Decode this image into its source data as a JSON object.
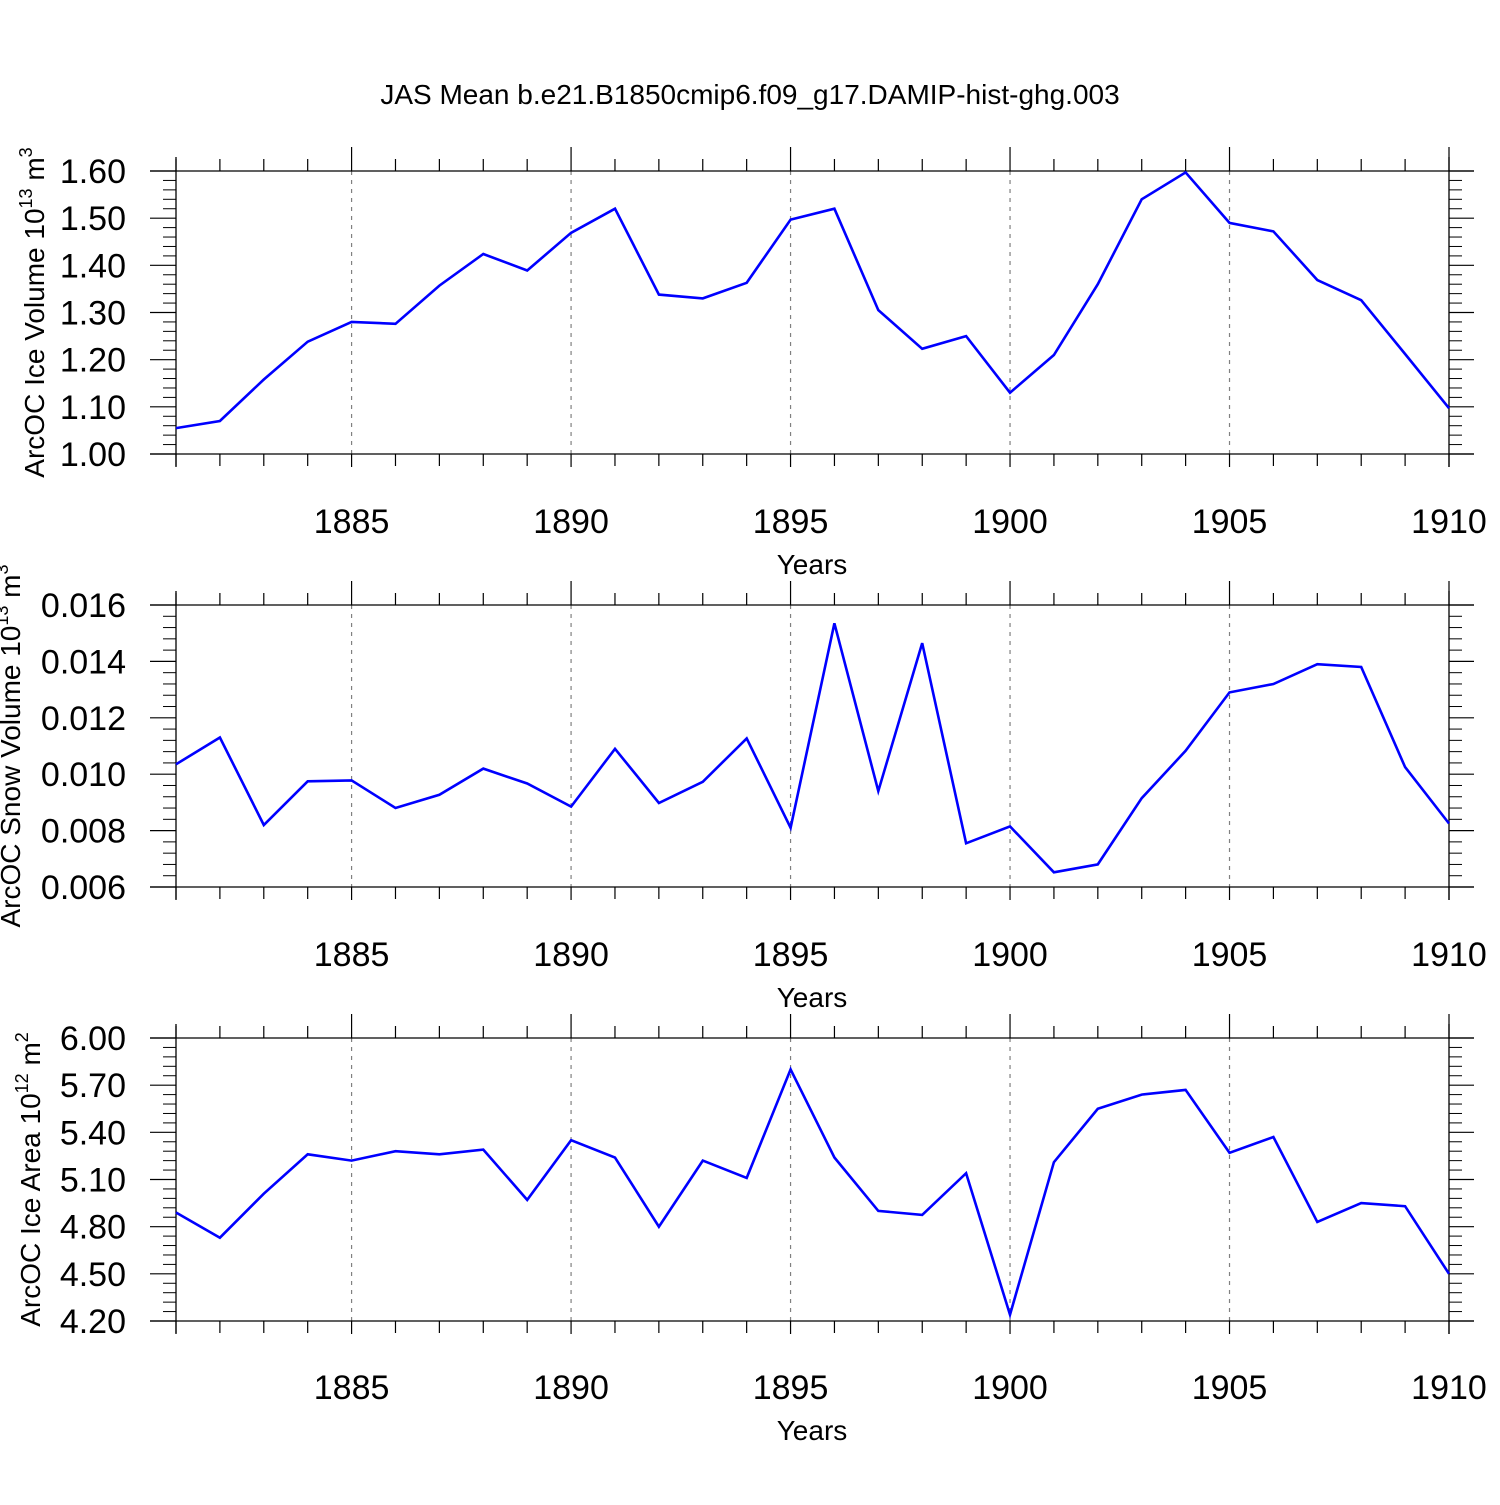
{
  "title": "JAS Mean b.e21.B1850cmip6.f09_g17.DAMIP-hist-ghg.003",
  "colors": {
    "line": "#0000ff",
    "axis": "#000000",
    "grid": "#808080"
  },
  "chart_data": [
    {
      "type": "line",
      "name": "ice-volume",
      "ylabel": {
        "text": "ArcOC Ice Volume 10",
        "sup": "13",
        "unit": " m",
        "unit_sup": "3"
      },
      "xlabel": "Years",
      "xlim": [
        1881,
        1910
      ],
      "ylim": [
        1.0,
        1.6
      ],
      "yticks": [
        1.0,
        1.1,
        1.2,
        1.3,
        1.4,
        1.5,
        1.6
      ],
      "ytick_labels": [
        "1.00",
        "1.10",
        "1.20",
        "1.30",
        "1.40",
        "1.50",
        "1.60"
      ],
      "xticks": [
        1885,
        1890,
        1895,
        1900,
        1905,
        1910
      ],
      "xtick_labels": [
        "1885",
        "1890",
        "1895",
        "1900",
        "1905",
        "1910"
      ],
      "x": [
        1881,
        1882,
        1883,
        1884,
        1885,
        1886,
        1887,
        1888,
        1889,
        1890,
        1891,
        1892,
        1893,
        1894,
        1895,
        1896,
        1897,
        1898,
        1899,
        1900,
        1901,
        1902,
        1903,
        1904,
        1905,
        1906,
        1907,
        1908,
        1909,
        1910
      ],
      "y": [
        1.055,
        1.07,
        1.158,
        1.238,
        1.28,
        1.276,
        1.357,
        1.424,
        1.389,
        1.469,
        1.52,
        1.338,
        1.33,
        1.363,
        1.497,
        1.52,
        1.305,
        1.223,
        1.25,
        1.13,
        1.21,
        1.36,
        1.54,
        1.597,
        1.49,
        1.472,
        1.369,
        1.326,
        1.212,
        1.097
      ]
    },
    {
      "type": "line",
      "name": "snow-volume",
      "ylabel": {
        "text": "ArcOC Snow Volume 10",
        "sup": "13",
        "unit": " m",
        "unit_sup": "3"
      },
      "xlabel": "Years",
      "xlim": [
        1881,
        1910
      ],
      "ylim": [
        0.006,
        0.016
      ],
      "yticks": [
        0.006,
        0.008,
        0.01,
        0.012,
        0.014,
        0.016
      ],
      "ytick_labels": [
        "0.006",
        "0.008",
        "0.010",
        "0.012",
        "0.014",
        "0.016"
      ],
      "xticks": [
        1885,
        1890,
        1895,
        1900,
        1905,
        1910
      ],
      "xtick_labels": [
        "1885",
        "1890",
        "1895",
        "1900",
        "1905",
        "1910"
      ],
      "x": [
        1881,
        1882,
        1883,
        1884,
        1885,
        1886,
        1887,
        1888,
        1889,
        1890,
        1891,
        1892,
        1893,
        1894,
        1895,
        1896,
        1897,
        1898,
        1899,
        1900,
        1901,
        1902,
        1903,
        1904,
        1905,
        1906,
        1907,
        1908,
        1909,
        1910
      ],
      "y": [
        0.01035,
        0.0113,
        0.0082,
        0.00975,
        0.00978,
        0.0088,
        0.00927,
        0.0102,
        0.00967,
        0.00885,
        0.0109,
        0.00898,
        0.00973,
        0.01127,
        0.0081,
        0.01535,
        0.0094,
        0.01465,
        0.00755,
        0.00815,
        0.00652,
        0.0068,
        0.00915,
        0.01083,
        0.0129,
        0.0132,
        0.0139,
        0.0138,
        0.01025,
        0.00825
      ]
    },
    {
      "type": "line",
      "name": "ice-area",
      "ylabel": {
        "text": "ArcOC Ice Area 10",
        "sup": "12",
        "unit": " m",
        "unit_sup": "2"
      },
      "xlabel": "Years",
      "xlim": [
        1881,
        1910
      ],
      "ylim": [
        4.2,
        6.0
      ],
      "yticks": [
        4.2,
        4.5,
        4.8,
        5.1,
        5.4,
        5.7,
        6.0
      ],
      "ytick_labels": [
        "4.20",
        "4.50",
        "4.80",
        "5.10",
        "5.40",
        "5.70",
        "6.00"
      ],
      "xticks": [
        1885,
        1890,
        1895,
        1900,
        1905,
        1910
      ],
      "xtick_labels": [
        "1885",
        "1890",
        "1895",
        "1900",
        "1905",
        "1910"
      ],
      "x": [
        1881,
        1882,
        1883,
        1884,
        1885,
        1886,
        1887,
        1888,
        1889,
        1890,
        1891,
        1892,
        1893,
        1894,
        1895,
        1896,
        1897,
        1898,
        1899,
        1900,
        1901,
        1902,
        1903,
        1904,
        1905,
        1906,
        1907,
        1908,
        1909,
        1910
      ],
      "y": [
        4.89,
        4.73,
        5.01,
        5.26,
        5.22,
        5.28,
        5.26,
        5.29,
        4.97,
        5.35,
        5.24,
        4.8,
        5.22,
        5.11,
        5.8,
        5.24,
        4.9,
        4.875,
        5.14,
        4.24,
        5.21,
        5.55,
        5.64,
        5.67,
        5.27,
        5.37,
        4.83,
        4.95,
        4.93,
        4.5
      ]
    }
  ]
}
